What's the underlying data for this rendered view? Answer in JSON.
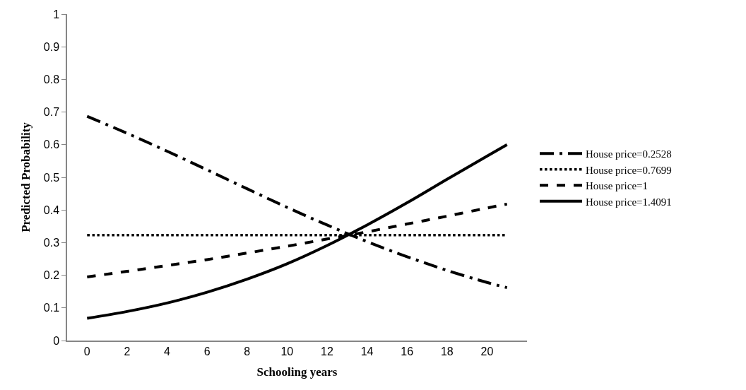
{
  "chart_data": {
    "type": "line",
    "xlabel": "Schooling years",
    "ylabel": "Predicted Probability",
    "x": [
      0,
      2,
      4,
      6,
      8,
      10,
      12,
      14,
      16,
      18,
      20,
      21
    ],
    "series": [
      {
        "name": "House price=0.2528",
        "color": "#000000",
        "line_style": "dashdot",
        "values": [
          0.687,
          0.635,
          0.58,
          0.523,
          0.465,
          0.408,
          0.354,
          0.303,
          0.257,
          0.215,
          0.178,
          0.162
        ]
      },
      {
        "name": "House price=0.7699",
        "color": "#000000",
        "line_style": "dotted",
        "values": [
          0.323,
          0.323,
          0.323,
          0.323,
          0.323,
          0.323,
          0.323,
          0.323,
          0.323,
          0.323,
          0.323,
          0.323
        ]
      },
      {
        "name": "House price=1",
        "color": "#000000",
        "line_style": "dashed",
        "values": [
          0.195,
          0.212,
          0.23,
          0.248,
          0.268,
          0.289,
          0.311,
          0.333,
          0.357,
          0.381,
          0.406,
          0.418
        ]
      },
      {
        "name": "House price=1.4091",
        "color": "#000000",
        "line_style": "solid",
        "values": [
          0.068,
          0.089,
          0.115,
          0.148,
          0.188,
          0.235,
          0.291,
          0.354,
          0.422,
          0.494,
          0.565,
          0.6
        ]
      }
    ],
    "xlim": [
      -1,
      22
    ],
    "xticks": [
      0,
      2,
      4,
      6,
      8,
      10,
      12,
      14,
      16,
      18,
      20
    ],
    "ylim": [
      0,
      1
    ],
    "yticks": [
      0,
      0.1,
      0.2,
      0.3,
      0.4,
      0.5,
      0.6,
      0.7,
      0.8,
      0.9,
      1
    ],
    "legend": "right",
    "marker": "none"
  }
}
